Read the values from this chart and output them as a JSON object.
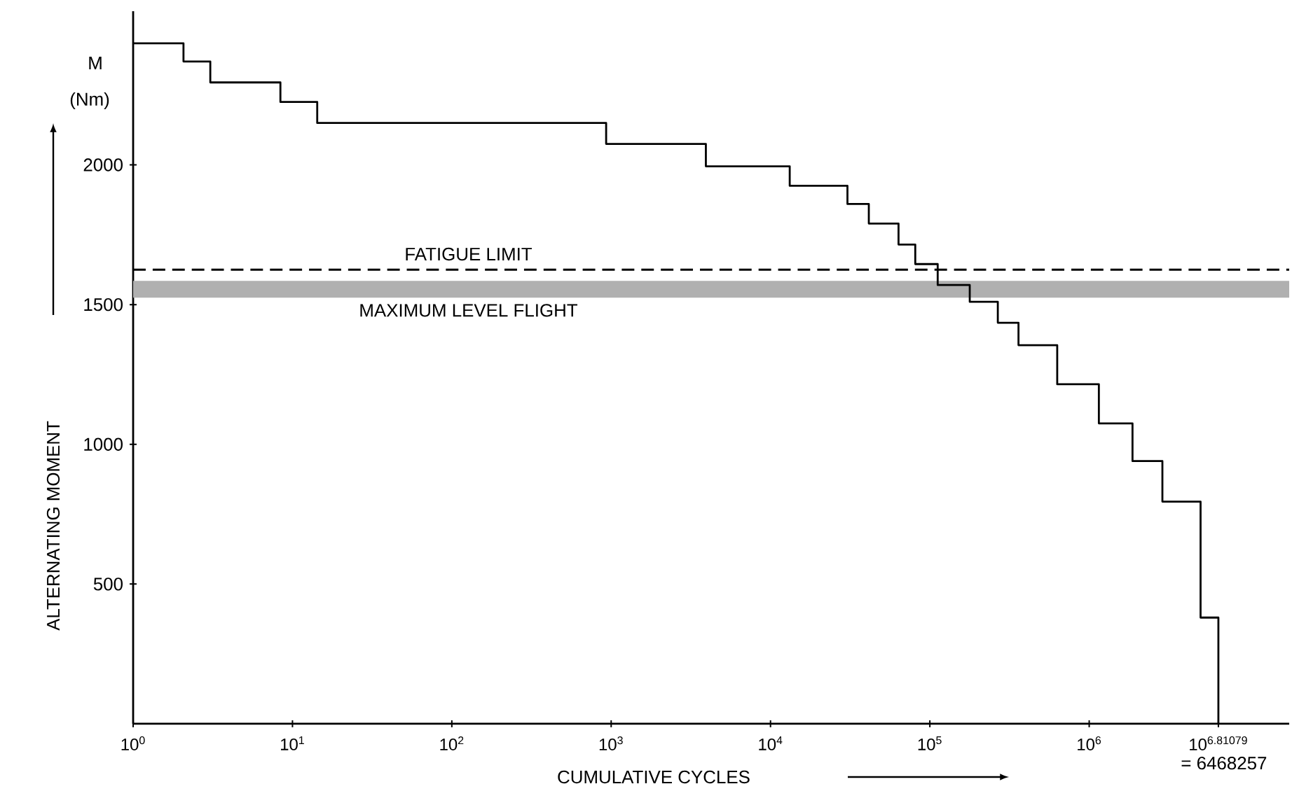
{
  "chart_data": {
    "type": "step",
    "xlabel": "CUMULATIVE CYCLES",
    "ylabel": "ALTERNATING MOMENT",
    "annotations": [
      "M",
      "(Nm)",
      {
        "text": "= 6468257",
        "x": 6468257,
        "y": 0
      }
    ],
    "log": "x",
    "xlim": [
      1,
      18000000
    ],
    "ylim": [
      0,
      2550
    ],
    "xticks": [
      {
        "value": 1,
        "label": "10$^{0}$"
      },
      {
        "value": 10,
        "label": "10$^{1}$"
      },
      {
        "value": 100,
        "label": "10$^{2}$"
      },
      {
        "value": 1000,
        "label": "10$^{3}$"
      },
      {
        "value": 10000,
        "label": "10$^{4}$"
      },
      {
        "value": 100000,
        "label": "10$^{5}$"
      },
      {
        "value": 1000000,
        "label": "10$^{6}$"
      },
      {
        "value": 6468257,
        "label": "10$^{6.81079}$"
      }
    ],
    "yticks": [
      500,
      1000,
      1500,
      2000
    ],
    "series": [
      {
        "color": "#000000",
        "x": [
          1,
          2.07,
          3.05,
          8.4,
          14.3,
          930,
          3930,
          13200,
          30400,
          41400,
          63600,
          81000,
          112000,
          178000,
          267000,
          360000,
          630000,
          1150000,
          1870000,
          2880000,
          5000000,
          6468257
        ],
        "values": [
          2435,
          2370,
          2295,
          2225,
          2150,
          2075,
          1995,
          1925,
          1860,
          1790,
          1715,
          1645,
          1570,
          1510,
          1435,
          1355,
          1215,
          1075,
          940,
          795,
          380,
          0
        ]
      }
    ],
    "ref_lines": [
      {
        "axis": "y",
        "value": 1625,
        "label": "FATIGUE LIMIT",
        "line_style": "dashed",
        "color": "#000000"
      }
    ],
    "bands": [
      {
        "axis": "y",
        "from": 1525,
        "to": 1585,
        "label": "MAXIMUM LEVEL FLIGHT",
        "color": "#b0b0b0"
      }
    ],
    "line_style": "solid",
    "marker": "none"
  }
}
